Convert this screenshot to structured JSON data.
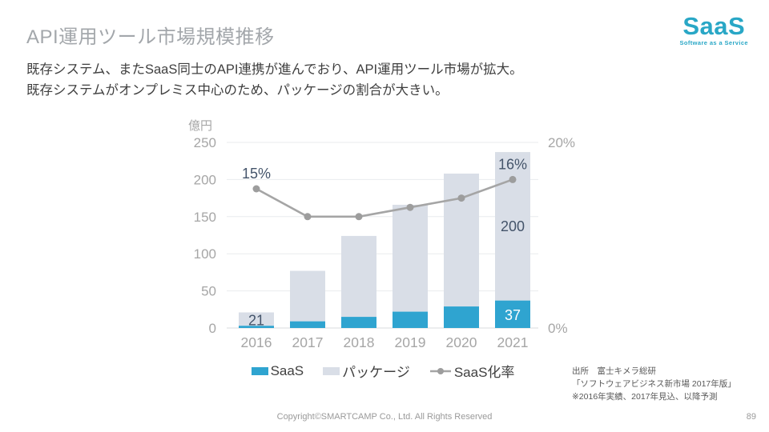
{
  "page": {
    "title": "API運用ツール市場規模推移",
    "body_lines": [
      "既存システム、またSaaS同士のAPI連携が進んでおり、API運用ツール市場が拡大。",
      "既存システムがオンプレミス中心のため、パッケージの割合が大きい。"
    ],
    "footer": "Copyright©SMARTCAMP Co., Ltd. All Rights Reserved",
    "page_number": "89"
  },
  "logo": {
    "text": "SaaS",
    "tagline": "Software as a Service",
    "color": "#29a7c6"
  },
  "source": {
    "lines": [
      "出所　富士キメラ総研",
      "「ソフトウェアビジネス新市場 2017年版」",
      "※2016年実績、2017年見込、以降予測"
    ]
  },
  "chart_data": {
    "type": "bar+line",
    "categories": [
      "2016",
      "2017",
      "2018",
      "2019",
      "2020",
      "2021"
    ],
    "series": [
      {
        "name": "SaaS",
        "type": "bar",
        "stack": true,
        "color": "#2fa4d0",
        "values": [
          3,
          9,
          15,
          22,
          29,
          37
        ]
      },
      {
        "name": "パッケージ",
        "type": "bar",
        "stack": true,
        "color": "#d9dee7",
        "values": [
          18,
          68,
          109,
          144,
          179,
          200
        ]
      },
      {
        "name": "SaaS化率",
        "type": "line",
        "axis": "right",
        "color": "#a5a5a5",
        "marker_color": "#9d9d9d",
        "unit": "%",
        "values": [
          15,
          12,
          12,
          13,
          14,
          16
        ]
      }
    ],
    "totals": [
      21,
      77,
      124,
      166,
      208,
      237
    ],
    "left_axis": {
      "unit_label": "億円",
      "ticks": [
        0,
        50,
        100,
        150,
        200,
        250
      ],
      "range": [
        0,
        250
      ]
    },
    "right_axis": {
      "range": [
        0,
        20
      ],
      "labels": [
        {
          "text": "20%",
          "value": 20
        },
        {
          "text": "0%",
          "value": 0
        }
      ]
    },
    "data_labels": [
      {
        "text": "21",
        "kind": "total",
        "cat": 0,
        "color": "#44546a"
      },
      {
        "text": "200",
        "kind": "package",
        "cat": 5,
        "color": "#44546a"
      },
      {
        "text": "37",
        "kind": "saas",
        "cat": 5,
        "color": "#ffffff"
      },
      {
        "text": "15%",
        "kind": "rate",
        "cat": 0,
        "color": "#44546a"
      },
      {
        "text": "16%",
        "kind": "rate",
        "cat": 5,
        "color": "#44546a"
      }
    ],
    "legend": [
      "SaaS",
      "パッケージ",
      "SaaS化率"
    ],
    "grid": true,
    "grid_color": "#e9ebee",
    "axis_text_color": "#a6a6a6",
    "title": "API運用ツール市場規模推移"
  }
}
